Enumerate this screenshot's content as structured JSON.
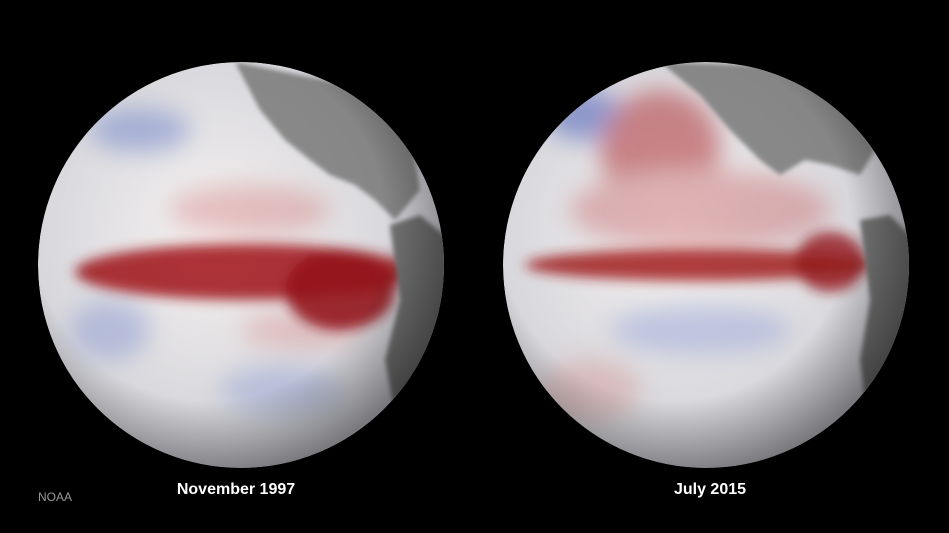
{
  "credit": "NOAA",
  "panels": [
    {
      "label": "November 1997"
    },
    {
      "label": "July 2015"
    }
  ]
}
